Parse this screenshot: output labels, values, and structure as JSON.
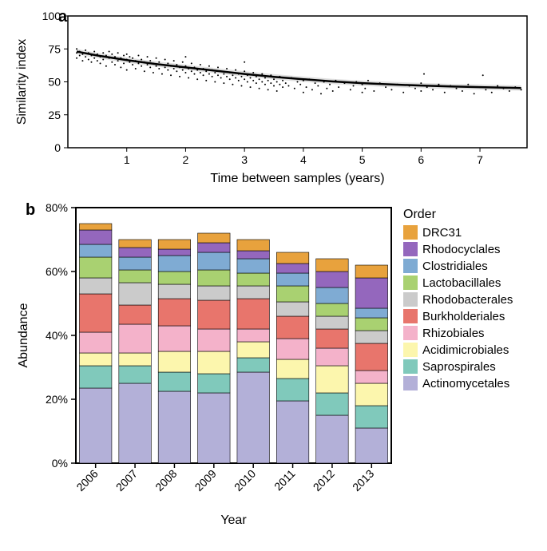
{
  "panel_a": {
    "label": "a",
    "type": "scatter_with_smooth",
    "xlabel": "Time between samples (years)",
    "ylabel": "Similarity index",
    "xlim": [
      0,
      7.8
    ],
    "ylim": [
      0,
      100
    ],
    "xticks": [
      1,
      2,
      3,
      4,
      5,
      6,
      7
    ],
    "yticks": [
      0,
      25,
      50,
      75,
      100
    ],
    "background_color": "#ffffff",
    "panel_border_color": "#000000",
    "panel_border_width": 1.5,
    "tick_fontsize": 14,
    "label_fontsize": 16,
    "panel_label_fontsize": 20,
    "point_color": "#000000",
    "point_radius": 1.0,
    "line_color": "#000000",
    "line_width": 2.5,
    "ribbon_color": "#cccccc",
    "ribbon_opacity": 0.6,
    "fit_line": [
      {
        "x": 0.15,
        "y": 73
      },
      {
        "x": 0.5,
        "y": 70
      },
      {
        "x": 1,
        "y": 66.5
      },
      {
        "x": 1.5,
        "y": 63.5
      },
      {
        "x": 2,
        "y": 61
      },
      {
        "x": 2.5,
        "y": 58.5
      },
      {
        "x": 3,
        "y": 56
      },
      {
        "x": 3.5,
        "y": 53.8
      },
      {
        "x": 4,
        "y": 52
      },
      {
        "x": 4.5,
        "y": 50.3
      },
      {
        "x": 5,
        "y": 49
      },
      {
        "x": 5.5,
        "y": 48
      },
      {
        "x": 6,
        "y": 47.2
      },
      {
        "x": 6.5,
        "y": 46.5
      },
      {
        "x": 7,
        "y": 46
      },
      {
        "x": 7.5,
        "y": 45.5
      },
      {
        "x": 7.7,
        "y": 45.3
      }
    ],
    "ribbon_margin": 2.0,
    "points": [
      [
        0.15,
        72
      ],
      [
        0.15,
        68
      ],
      [
        0.15,
        75
      ],
      [
        0.2,
        70
      ],
      [
        0.2,
        73
      ],
      [
        0.25,
        66
      ],
      [
        0.25,
        71
      ],
      [
        0.3,
        74
      ],
      [
        0.3,
        69
      ],
      [
        0.35,
        67
      ],
      [
        0.35,
        72
      ],
      [
        0.4,
        70
      ],
      [
        0.4,
        65
      ],
      [
        0.45,
        73
      ],
      [
        0.45,
        68
      ],
      [
        0.5,
        71
      ],
      [
        0.5,
        66
      ],
      [
        0.55,
        69
      ],
      [
        0.55,
        64
      ],
      [
        0.6,
        72
      ],
      [
        0.6,
        67
      ],
      [
        0.65,
        70
      ],
      [
        0.65,
        62
      ],
      [
        0.7,
        68
      ],
      [
        0.7,
        73
      ],
      [
        0.75,
        65
      ],
      [
        0.75,
        71
      ],
      [
        0.8,
        69
      ],
      [
        0.8,
        63
      ],
      [
        0.85,
        66
      ],
      [
        0.85,
        72
      ],
      [
        0.9,
        68
      ],
      [
        0.9,
        61
      ],
      [
        0.95,
        70
      ],
      [
        0.95,
        64
      ],
      [
        1.0,
        67
      ],
      [
        1.0,
        71
      ],
      [
        1.0,
        59
      ],
      [
        1.05,
        65
      ],
      [
        1.05,
        69
      ],
      [
        1.1,
        63
      ],
      [
        1.1,
        68
      ],
      [
        1.15,
        66
      ],
      [
        1.15,
        60
      ],
      [
        1.2,
        64
      ],
      [
        1.2,
        70
      ],
      [
        1.25,
        62
      ],
      [
        1.25,
        67
      ],
      [
        1.3,
        65
      ],
      [
        1.3,
        58
      ],
      [
        1.35,
        63
      ],
      [
        1.35,
        69
      ],
      [
        1.4,
        61
      ],
      [
        1.4,
        66
      ],
      [
        1.45,
        64
      ],
      [
        1.45,
        57
      ],
      [
        1.5,
        62
      ],
      [
        1.5,
        68
      ],
      [
        1.55,
        60
      ],
      [
        1.55,
        65
      ],
      [
        1.6,
        63
      ],
      [
        1.6,
        56
      ],
      [
        1.65,
        61
      ],
      [
        1.65,
        67
      ],
      [
        1.7,
        59
      ],
      [
        1.7,
        64
      ],
      [
        1.75,
        62
      ],
      [
        1.75,
        55
      ],
      [
        1.8,
        60
      ],
      [
        1.8,
        66
      ],
      [
        1.85,
        58
      ],
      [
        1.85,
        63
      ],
      [
        1.9,
        61
      ],
      [
        1.9,
        54
      ],
      [
        1.95,
        59
      ],
      [
        1.95,
        65
      ],
      [
        2.0,
        57
      ],
      [
        2.0,
        62
      ],
      [
        2.0,
        69
      ],
      [
        2.05,
        60
      ],
      [
        2.05,
        53
      ],
      [
        2.1,
        58
      ],
      [
        2.1,
        64
      ],
      [
        2.15,
        56
      ],
      [
        2.15,
        61
      ],
      [
        2.2,
        59
      ],
      [
        2.2,
        52
      ],
      [
        2.25,
        57
      ],
      [
        2.25,
        63
      ],
      [
        2.3,
        55
      ],
      [
        2.3,
        60
      ],
      [
        2.35,
        58
      ],
      [
        2.35,
        51
      ],
      [
        2.4,
        56
      ],
      [
        2.4,
        62
      ],
      [
        2.45,
        54
      ],
      [
        2.45,
        59
      ],
      [
        2.5,
        57
      ],
      [
        2.5,
        50
      ],
      [
        2.55,
        55
      ],
      [
        2.55,
        61
      ],
      [
        2.6,
        53
      ],
      [
        2.6,
        58
      ],
      [
        2.65,
        56
      ],
      [
        2.65,
        49
      ],
      [
        2.7,
        54
      ],
      [
        2.7,
        60
      ],
      [
        2.75,
        52
      ],
      [
        2.75,
        57
      ],
      [
        2.8,
        55
      ],
      [
        2.8,
        48
      ],
      [
        2.85,
        53
      ],
      [
        2.85,
        59
      ],
      [
        2.9,
        51
      ],
      [
        2.9,
        56
      ],
      [
        2.95,
        54
      ],
      [
        2.95,
        47
      ],
      [
        3.0,
        52
      ],
      [
        3.0,
        58
      ],
      [
        3.0,
        65
      ],
      [
        3.05,
        50
      ],
      [
        3.05,
        55
      ],
      [
        3.1,
        53
      ],
      [
        3.1,
        46
      ],
      [
        3.15,
        51
      ],
      [
        3.15,
        57
      ],
      [
        3.2,
        49
      ],
      [
        3.2,
        54
      ],
      [
        3.25,
        52
      ],
      [
        3.25,
        45
      ],
      [
        3.3,
        50
      ],
      [
        3.3,
        56
      ],
      [
        3.35,
        48
      ],
      [
        3.35,
        53
      ],
      [
        3.4,
        51
      ],
      [
        3.4,
        44
      ],
      [
        3.45,
        49
      ],
      [
        3.45,
        55
      ],
      [
        3.5,
        47
      ],
      [
        3.5,
        52
      ],
      [
        3.55,
        50
      ],
      [
        3.55,
        43
      ],
      [
        3.6,
        48
      ],
      [
        3.6,
        54
      ],
      [
        3.65,
        46
      ],
      [
        3.65,
        51
      ],
      [
        3.7,
        49
      ],
      [
        3.75,
        47
      ],
      [
        3.8,
        53
      ],
      [
        3.85,
        45
      ],
      [
        3.9,
        50
      ],
      [
        3.95,
        48
      ],
      [
        4.0,
        42
      ],
      [
        4.0,
        51
      ],
      [
        4.05,
        46
      ],
      [
        4.1,
        52
      ],
      [
        4.15,
        44
      ],
      [
        4.2,
        49
      ],
      [
        4.25,
        47
      ],
      [
        4.3,
        41
      ],
      [
        4.35,
        50
      ],
      [
        4.4,
        45
      ],
      [
        4.45,
        48
      ],
      [
        4.5,
        43
      ],
      [
        4.55,
        51
      ],
      [
        4.6,
        46
      ],
      [
        4.7,
        49
      ],
      [
        4.8,
        44
      ],
      [
        4.85,
        47
      ],
      [
        4.9,
        50
      ],
      [
        5.0,
        42
      ],
      [
        5.0,
        48
      ],
      [
        5.05,
        45
      ],
      [
        5.1,
        51
      ],
      [
        5.2,
        43
      ],
      [
        5.3,
        49
      ],
      [
        5.4,
        46
      ],
      [
        5.5,
        44
      ],
      [
        5.6,
        48
      ],
      [
        5.7,
        42
      ],
      [
        5.8,
        47
      ],
      [
        5.9,
        45
      ],
      [
        6.0,
        43
      ],
      [
        6.0,
        49
      ],
      [
        6.05,
        56
      ],
      [
        6.1,
        46
      ],
      [
        6.2,
        44
      ],
      [
        6.3,
        48
      ],
      [
        6.4,
        42
      ],
      [
        6.5,
        47
      ],
      [
        6.6,
        45
      ],
      [
        6.7,
        43
      ],
      [
        6.8,
        48
      ],
      [
        6.9,
        41
      ],
      [
        7.0,
        46
      ],
      [
        7.05,
        55
      ],
      [
        7.1,
        44
      ],
      [
        7.2,
        42
      ],
      [
        7.3,
        47
      ],
      [
        7.4,
        45
      ],
      [
        7.5,
        43
      ],
      [
        7.6,
        46
      ],
      [
        7.7,
        44
      ]
    ]
  },
  "panel_b": {
    "label": "b",
    "type": "stacked_bar",
    "xlabel": "Year",
    "ylabel": "Abundance",
    "categories": [
      "2006",
      "2007",
      "2008",
      "2009",
      "2010",
      "2011",
      "2012",
      "2013"
    ],
    "ylim": [
      0,
      80
    ],
    "yticks": [
      0,
      20,
      40,
      60,
      80
    ],
    "ytick_labels": [
      "0%",
      "20%",
      "40%",
      "60%",
      "80%"
    ],
    "xtick_rotation": 45,
    "background_color": "#ffffff",
    "panel_border_color": "#000000",
    "panel_border_width": 2,
    "tick_fontsize": 14,
    "label_fontsize": 16,
    "panel_label_fontsize": 20,
    "bar_width": 0.82,
    "bar_border_color": "#000000",
    "bar_border_width": 0.6,
    "legend_title": "Order",
    "orders": [
      {
        "name": "Actinomycetales",
        "color": "#b3b0d8"
      },
      {
        "name": "Saprospirales",
        "color": "#80c9bb"
      },
      {
        "name": "Acidimicrobiales",
        "color": "#fcf6ad"
      },
      {
        "name": "Rhizobiales",
        "color": "#f4b2ca"
      },
      {
        "name": "Burkholderiales",
        "color": "#e8756c"
      },
      {
        "name": "Rhodobacterales",
        "color": "#cbcbcb"
      },
      {
        "name": "Lactobacillales",
        "color": "#a9d171"
      },
      {
        "name": "Clostridiales",
        "color": "#7fabd3"
      },
      {
        "name": "Rhodocyclales",
        "color": "#9467bd"
      },
      {
        "name": "DRC31",
        "color": "#e8a23d"
      }
    ],
    "legend_order_top_to_bottom": [
      "DRC31",
      "Rhodocyclales",
      "Clostridiales",
      "Lactobacillales",
      "Rhodobacterales",
      "Burkholderiales",
      "Rhizobiales",
      "Acidimicrobiales",
      "Saprospirales",
      "Actinomycetales"
    ],
    "values": {
      "Actinomycetales": [
        23.5,
        25.0,
        22.5,
        22.0,
        28.5,
        19.5,
        15.0,
        11.0
      ],
      "Saprospirales": [
        7.0,
        5.5,
        6.0,
        6.0,
        4.5,
        7.0,
        7.0,
        7.0
      ],
      "Acidimicrobiales": [
        4.0,
        4.0,
        6.5,
        7.0,
        5.0,
        6.0,
        8.5,
        7.0
      ],
      "Rhizobiales": [
        6.5,
        9.0,
        8.0,
        7.0,
        4.0,
        6.5,
        5.5,
        4.0
      ],
      "Burkholderiales": [
        12.0,
        6.0,
        8.5,
        9.0,
        9.5,
        7.0,
        6.0,
        8.5
      ],
      "Rhodobacterales": [
        5.0,
        7.0,
        4.5,
        4.5,
        4.0,
        4.5,
        4.0,
        4.0
      ],
      "Lactobacillales": [
        6.5,
        4.0,
        4.0,
        5.0,
        4.0,
        5.0,
        4.0,
        4.0
      ],
      "Clostridiales": [
        4.0,
        4.0,
        5.0,
        5.5,
        4.5,
        4.0,
        5.0,
        3.0
      ],
      "Rhodocyclales": [
        4.5,
        3.0,
        2.0,
        3.0,
        2.5,
        3.0,
        5.0,
        9.5
      ],
      "DRC31": [
        2.0,
        2.5,
        3.0,
        3.0,
        3.5,
        3.5,
        4.0,
        4.0
      ]
    }
  }
}
